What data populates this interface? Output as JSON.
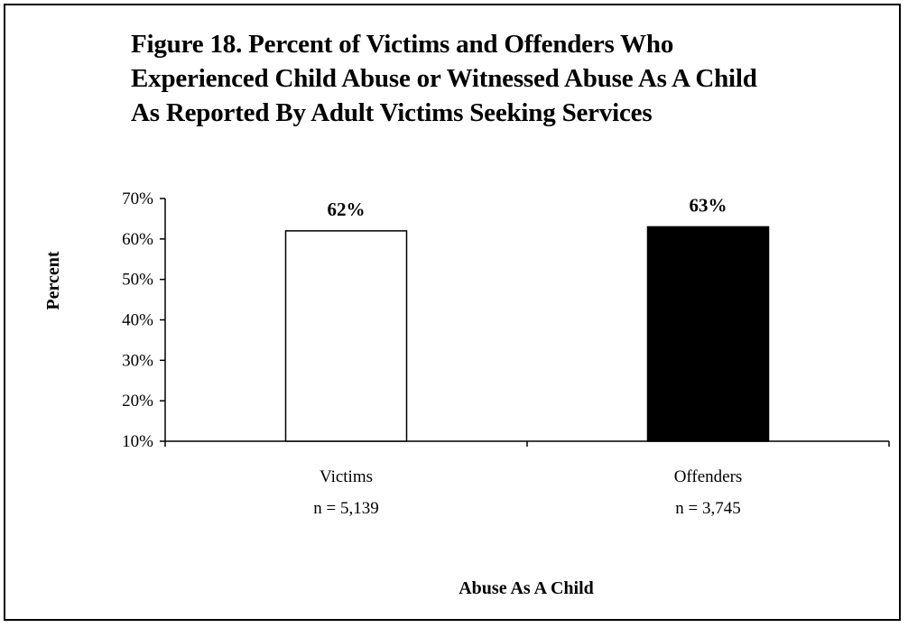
{
  "figure": {
    "title_lines": [
      "Figure 18. Percent of Victims and Offenders Who",
      "Experienced Child Abuse or Witnessed Abuse As A Child",
      "As Reported By Adult Victims Seeking Services"
    ]
  },
  "chart_data": {
    "type": "bar",
    "title": "Figure 18. Percent of Victims and Offenders Who Experienced Child Abuse or Witnessed Abuse As A Child As Reported By Adult Victims Seeking Services",
    "xlabel": "Abuse As A Child",
    "ylabel": "Percent",
    "categories": [
      "Victims",
      "Offenders"
    ],
    "category_sublabels": [
      "n = 5,139",
      "n = 3,745"
    ],
    "values": [
      62,
      63
    ],
    "data_labels": [
      "62%",
      "63%"
    ],
    "bar_colors": [
      "#ffffff",
      "#000000"
    ],
    "ylim": [
      10,
      70
    ],
    "yticks": [
      10,
      20,
      30,
      40,
      50,
      60,
      70
    ],
    "ytick_labels": [
      "10%",
      "20%",
      "30%",
      "40%",
      "50%",
      "60%",
      "70%"
    ],
    "grid": false,
    "legend": "none"
  }
}
